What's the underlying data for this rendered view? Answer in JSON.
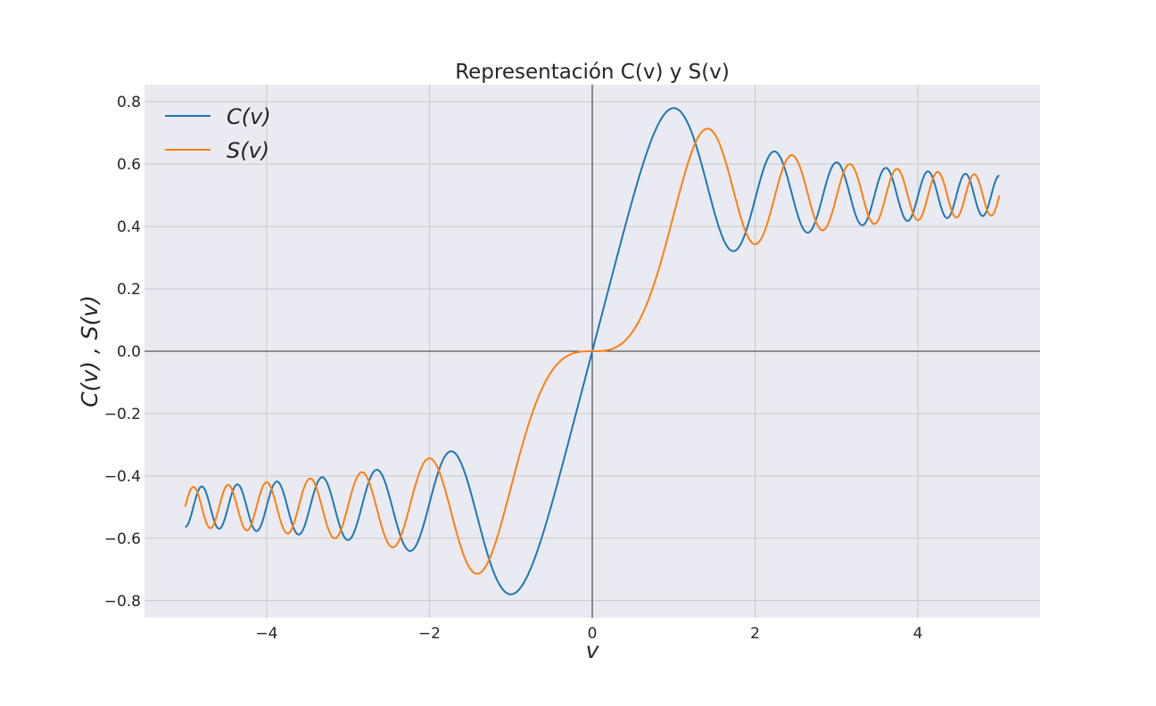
{
  "chart_data": {
    "type": "line",
    "title": "Representación C(v) y S(v)",
    "xlabel": "v",
    "ylabel": "C(v) , S(v)",
    "xlim": [
      -5.5,
      5.5
    ],
    "ylim": [
      -0.855,
      0.855
    ],
    "xticks": [
      -4,
      -2,
      0,
      2,
      4
    ],
    "xtick_labels": [
      "−4",
      "−2",
      "0",
      "2",
      "4"
    ],
    "yticks": [
      -0.8,
      -0.6,
      -0.4,
      -0.2,
      0.0,
      0.2,
      0.4,
      0.6,
      0.8
    ],
    "ytick_labels": [
      "−0.8",
      "−0.6",
      "−0.4",
      "−0.2",
      "0.0",
      "0.2",
      "0.4",
      "0.6",
      "0.8"
    ],
    "grid": true,
    "legend_position": "top-left",
    "x_range": [
      -5,
      5
    ],
    "series": [
      {
        "name": "C(v)",
        "function": "fresnel_C",
        "color": "#1f77b4"
      },
      {
        "name": "S(v)",
        "function": "fresnel_S",
        "color": "#ff7f0e"
      }
    ],
    "background": "#eaeaf2"
  }
}
